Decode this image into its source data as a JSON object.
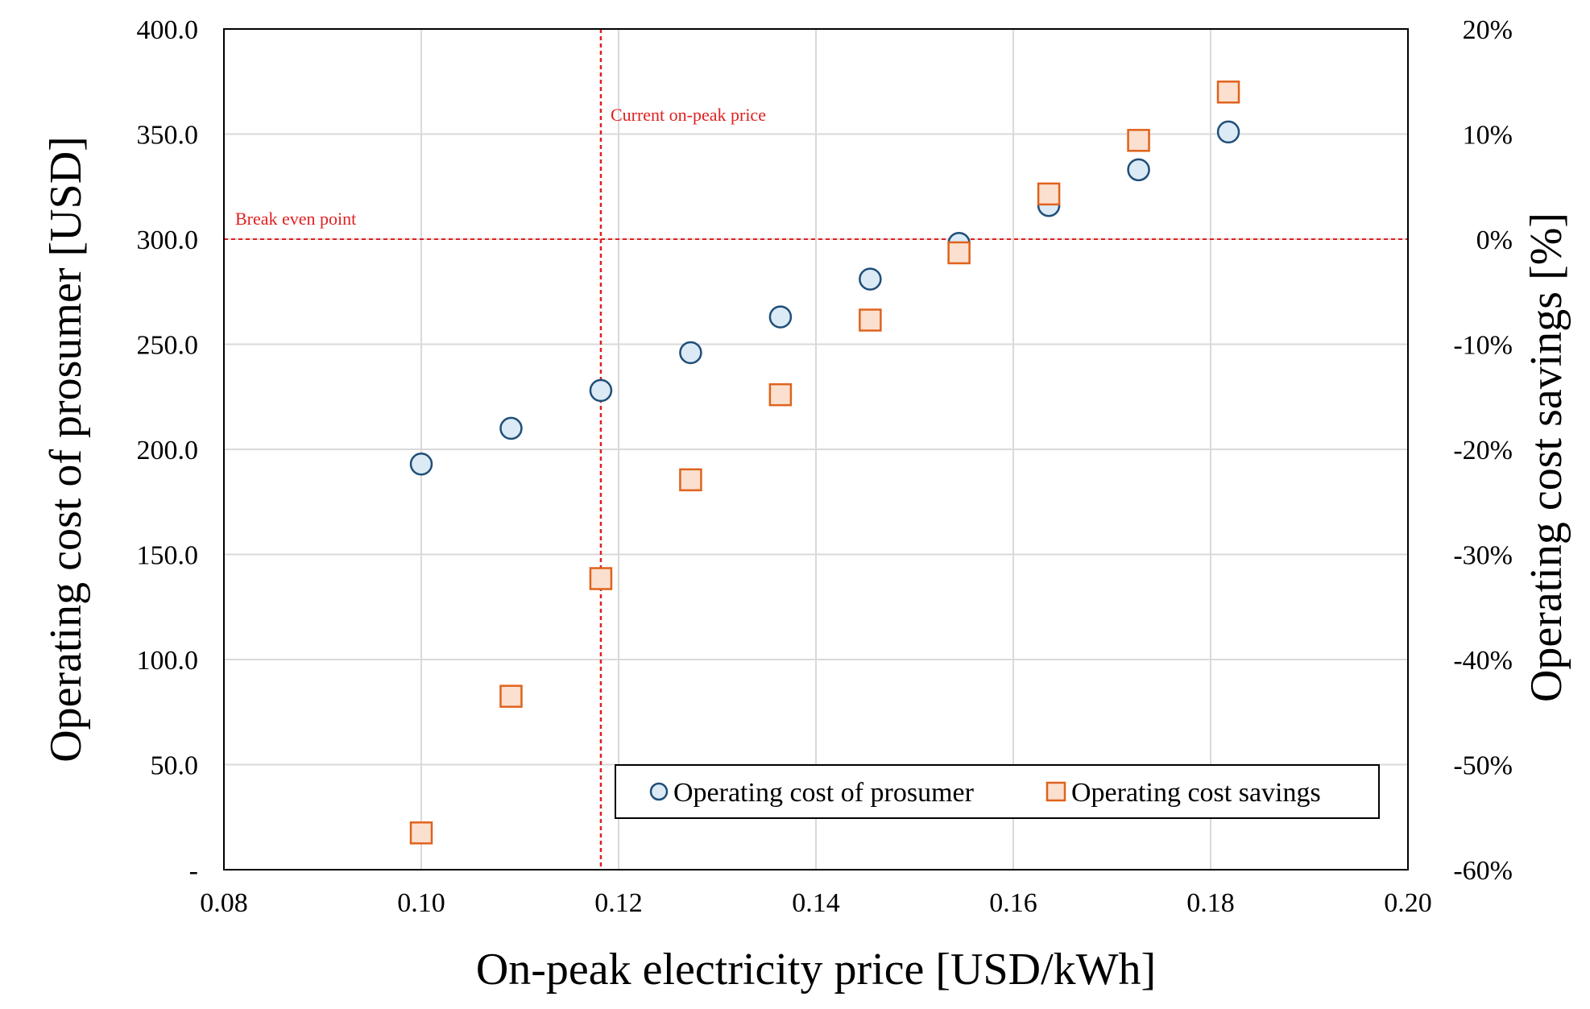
{
  "chart_data": {
    "type": "scatter",
    "title": "",
    "xlabel": "On-peak electricity price [USD/kWh]",
    "ylabel": "Operating cost of prosumer [USD]",
    "y2label": "Operating cost savings [%]",
    "xlim": [
      0.08,
      0.2
    ],
    "ylim": [
      0,
      400
    ],
    "y2lim": [
      -60,
      20
    ],
    "x_ticks": [
      "0.08",
      "0.10",
      "0.12",
      "0.14",
      "0.16",
      "0.18",
      "0.20"
    ],
    "x_tick_values": [
      0.08,
      0.1,
      0.12,
      0.14,
      0.16,
      0.18,
      0.2
    ],
    "y_ticks": [
      "-",
      "50.0",
      "100.0",
      "150.0",
      "200.0",
      "250.0",
      "300.0",
      "350.0",
      "400.0"
    ],
    "y_tick_values": [
      0,
      50,
      100,
      150,
      200,
      250,
      300,
      350,
      400
    ],
    "y2_ticks": [
      "-60%",
      "-50%",
      "-40%",
      "-30%",
      "-20%",
      "-10%",
      "0%",
      "10%",
      "20%"
    ],
    "y2_tick_values": [
      -60,
      -50,
      -40,
      -30,
      -20,
      -10,
      0,
      10,
      20
    ],
    "grid": true,
    "legend_position": "bottom-right",
    "series": [
      {
        "name": "Operating cost of prosumer",
        "axis": "left",
        "marker": "circle",
        "fill": "#dbeaf5",
        "stroke": "#1f4e79",
        "x": [
          0.1,
          0.1091,
          0.1182,
          0.1273,
          0.1364,
          0.1455,
          0.1545,
          0.1636,
          0.1727,
          0.1818
        ],
        "values": [
          193,
          210,
          228,
          246,
          263,
          281,
          298,
          316,
          333,
          351
        ]
      },
      {
        "name": "Operating cost savings",
        "axis": "right",
        "marker": "square",
        "fill": "#fbe0cf",
        "stroke": "#e0621b",
        "x": [
          0.1,
          0.1091,
          0.1182,
          0.1273,
          0.1364,
          0.1455,
          0.1545,
          0.1636,
          0.1727,
          0.1818
        ],
        "values": [
          -56.5,
          -43.5,
          -32.3,
          -22.9,
          -14.8,
          -7.7,
          -1.3,
          4.3,
          9.4,
          14.0
        ]
      }
    ],
    "annotations": [
      {
        "text": "Current on-peak price",
        "type": "vline",
        "x": 0.1182,
        "color": "#e02020"
      },
      {
        "text": "Break even point",
        "type": "hline",
        "y2": 0,
        "color": "#e02020"
      }
    ]
  }
}
